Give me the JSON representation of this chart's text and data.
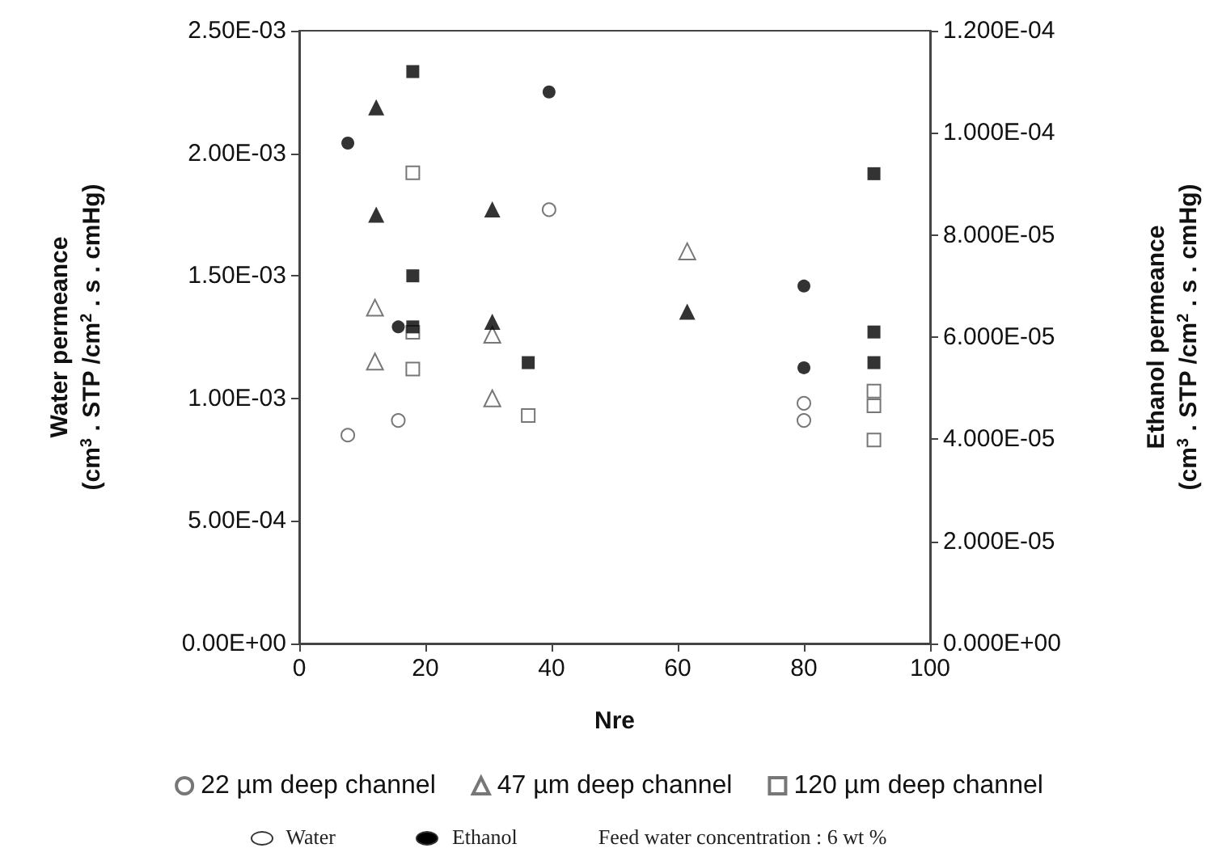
{
  "chart_data": {
    "type": "scatter",
    "xlabel": "Nre",
    "ylabel": "Water permeance\n(cm$^{3}$ . STP /cm$^{2}$ . s . cmHg)",
    "y2label": "Ethanol permeance\n(cm$^{3}$ . STP /cm$^{2}$ . s . cmHg)",
    "xlim": [
      0,
      100
    ],
    "xticks": [
      0,
      20,
      40,
      60,
      80,
      100
    ],
    "ylim": [
      0,
      0.0025
    ],
    "yticks": [
      {
        "value": 0,
        "label": "0.00E+00"
      },
      {
        "value": 0.0005,
        "label": "5.00E-04"
      },
      {
        "value": 0.001,
        "label": "1.00E-03"
      },
      {
        "value": 0.0015,
        "label": "1.50E-03"
      },
      {
        "value": 0.002,
        "label": "2.00E-03"
      },
      {
        "value": 0.0025,
        "label": "2.50E-03"
      }
    ],
    "y2lim": [
      0,
      0.00012
    ],
    "y2ticks": [
      {
        "value": 0,
        "label": "0.000E+00"
      },
      {
        "value": 2e-05,
        "label": "2.000E-05"
      },
      {
        "value": 4e-05,
        "label": "4.000E-05"
      },
      {
        "value": 6e-05,
        "label": "6.000E-05"
      },
      {
        "value": 8e-05,
        "label": "8.000E-05"
      },
      {
        "value": 0.0001,
        "label": "1.000E-04"
      },
      {
        "value": 0.00012,
        "label": "1.200E-04"
      }
    ],
    "grid": false,
    "legend": "bottom",
    "annotations": [
      "Water",
      "Ethanol",
      "Feed water concentration : 6 wt %"
    ],
    "series": [
      {
        "name": "22 µm deep channel",
        "color": "#555555",
        "marker": "circle",
        "axis": "y",
        "x": [
          7.7,
          15.7,
          39.6,
          80,
          80
        ],
        "values": [
          0.00085,
          0.00091,
          0.00177,
          0.00098,
          0.00091
        ]
      },
      {
        "name": "47 µm deep channel",
        "color": "#555555",
        "marker": "triangle",
        "axis": "y",
        "x": [
          12,
          12,
          30.6,
          30.6,
          61.5
        ],
        "values": [
          0.00137,
          0.00115,
          0.00126,
          0.001,
          0.0016
        ]
      },
      {
        "name": "120 µm deep channel",
        "color": "#555555",
        "marker": "square",
        "axis": "y",
        "x": [
          18,
          18,
          18,
          36.3,
          91.1,
          91.1,
          91.1
        ],
        "values": [
          0.00192,
          0.00127,
          0.00112,
          0.00093,
          0.00103,
          0.00097,
          0.00083
        ]
      },
      {
        "color": "#000000",
        "marker": "circle",
        "axis": "y2",
        "x": [
          7.7,
          15.7,
          39.6,
          80,
          80
        ],
        "values": [
          9.8e-05,
          6.2e-05,
          0.000108,
          7e-05,
          5.4e-05
        ]
      },
      {
        "color": "#000000",
        "marker": "triangle",
        "axis": "y2",
        "x": [
          12.2,
          12.2,
          30.6,
          30.6,
          61.5
        ],
        "values": [
          0.000105,
          8.4e-05,
          8.5e-05,
          6.3e-05,
          6.5e-05
        ]
      },
      {
        "color": "#000000",
        "marker": "square",
        "axis": "y2",
        "x": [
          18,
          18,
          18,
          36.3,
          91.1,
          91.1,
          91.1
        ],
        "values": [
          0.000112,
          7.2e-05,
          6.2e-05,
          5.5e-05,
          9.2e-05,
          6.1e-05,
          5.5e-05
        ]
      }
    ]
  }
}
